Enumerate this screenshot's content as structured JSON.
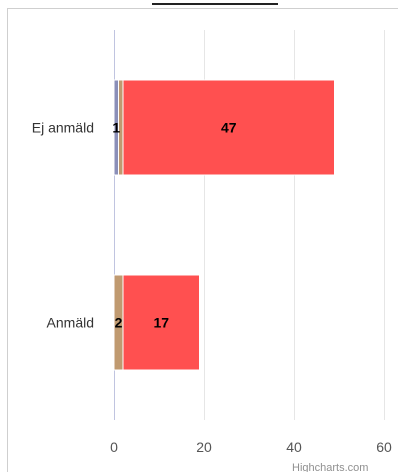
{
  "chart_data": {
    "type": "bar",
    "orientation": "horizontal",
    "stacked": true,
    "categories": [
      "Ej anmäld",
      "Anmäld"
    ],
    "series": [
      {
        "values": [
          1,
          0
        ],
        "color": "#8b8fb8"
      },
      {
        "values": [
          1,
          2
        ],
        "color": "#c09a70"
      },
      {
        "values": [
          47,
          17
        ],
        "color": "#ff5050"
      }
    ],
    "data_labels": [
      [
        "1",
        "",
        "47"
      ],
      [
        "",
        "2",
        "17"
      ]
    ],
    "xlim": [
      0,
      60
    ],
    "x_ticks": [
      0,
      20,
      40,
      60
    ],
    "x_tick_labels": [
      "0",
      "20",
      "40",
      "60"
    ],
    "grid": true,
    "title": "",
    "xlabel": "",
    "ylabel": ""
  },
  "credit": "Highcharts.com"
}
